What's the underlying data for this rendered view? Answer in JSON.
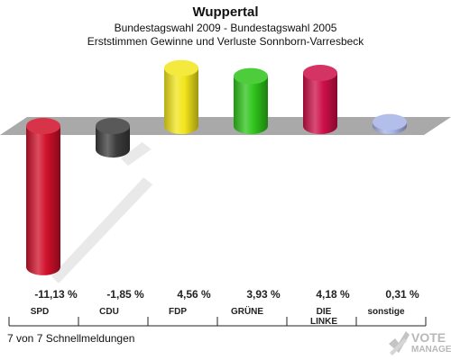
{
  "header": {
    "title": "Wuppertal",
    "subtitle1": "Bundestagswahl 2009 - Bundestagswahl 2005",
    "subtitle2": "Erststimmen Gewinne und Verluste Sonnborn-Varresbeck"
  },
  "footer": {
    "text": "7 von 7 Schnellmeldungen"
  },
  "brand": {
    "line1": "VOTE",
    "line2": "MANAGER",
    "icon": "checkmark-x-icon"
  },
  "chart_data": {
    "type": "bar",
    "categories": [
      "SPD",
      "CDU",
      "FDP",
      "GRÜNE",
      "DIE LINKE",
      "sonstige"
    ],
    "values": [
      -11.13,
      -1.85,
      4.56,
      3.93,
      4.18,
      0.31
    ],
    "value_labels": [
      "-11,13 %",
      "-1,85 %",
      "4,56 %",
      "3,93 %",
      "4,18 %",
      "0,31 %"
    ],
    "colors": [
      "#d0102a",
      "#3c3c3c",
      "#f2e51b",
      "#2ec41a",
      "#cc1048",
      "#a6b3e6"
    ],
    "title": "Wuppertal",
    "subtitle": "Bundestagswahl 2009 - Bundestagswahl 2005 / Erststimmen Gewinne und Verluste Sonnborn-Varresbeck",
    "xlabel": "",
    "ylabel": "",
    "grid": false,
    "legend": "none"
  }
}
